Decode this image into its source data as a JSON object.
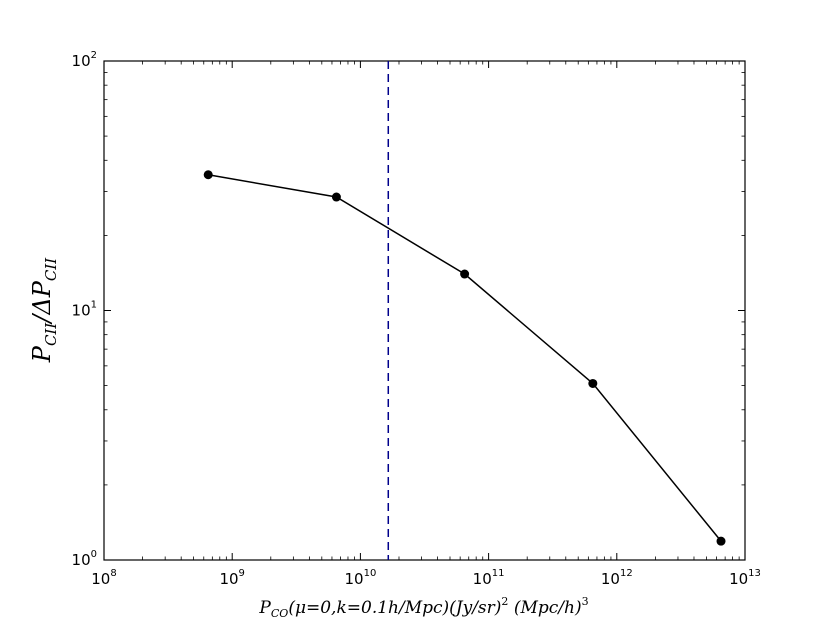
{
  "chart_data": {
    "type": "line",
    "title": "",
    "x_scale": "log",
    "y_scale": "log",
    "xlim": [
      100000000,
      10000000000000
    ],
    "ylim": [
      1,
      100
    ],
    "grid": false,
    "legend": "none",
    "x_ticks": [
      {
        "value": 100000000,
        "base": "10",
        "exp": "8"
      },
      {
        "value": 1000000000,
        "base": "10",
        "exp": "9"
      },
      {
        "value": 10000000000,
        "base": "10",
        "exp": "10"
      },
      {
        "value": 100000000000,
        "base": "10",
        "exp": "11"
      },
      {
        "value": 1000000000000,
        "base": "10",
        "exp": "12"
      },
      {
        "value": 10000000000000,
        "base": "10",
        "exp": "13"
      }
    ],
    "y_ticks": [
      {
        "value": 1,
        "base": "10",
        "exp": "0"
      },
      {
        "value": 10,
        "base": "10",
        "exp": "1"
      },
      {
        "value": 100,
        "base": "10",
        "exp": "2"
      }
    ],
    "xlabel": {
      "p": "P",
      "p_sub": "CO",
      "args": "(μ=0,k=0.1h/Mpc)(Jy/sr)",
      "sq": "2",
      "mpc": " (Mpc/h)",
      "cube": "3"
    },
    "ylabel": {
      "p1": "P",
      "sub1": "CII",
      "slash": "/ΔP",
      "sub2": "CII"
    },
    "series": [
      {
        "color": "#000000",
        "marker": "circle",
        "x": [
          650000000,
          6500000000,
          65000000000,
          650000000000,
          6500000000000
        ],
        "y": [
          35,
          28.5,
          14,
          5.1,
          1.19
        ]
      }
    ],
    "vline": {
      "x": 16500000000,
      "style": "dashed",
      "color": "#00008b"
    }
  }
}
